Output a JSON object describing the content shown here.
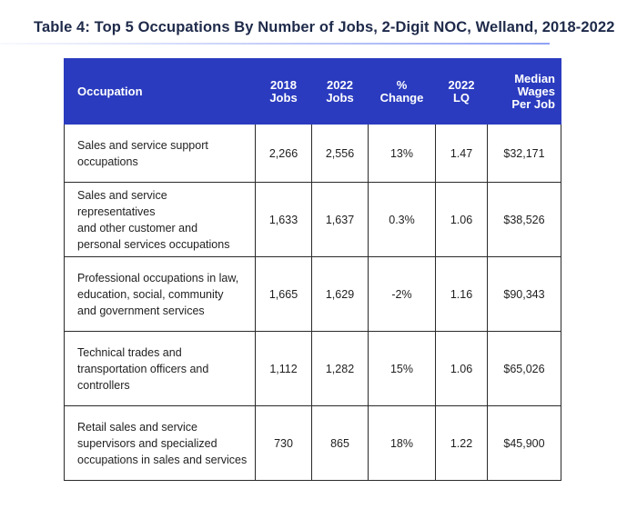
{
  "title": "Table 4: Top 5 Occupations By Number of Jobs, 2-Digit NOC, Welland, 2018-2022",
  "header": {
    "occupation": "Occupation",
    "jobs2018": [
      "2018",
      "Jobs"
    ],
    "jobs2022": [
      "2022",
      "Jobs"
    ],
    "change": [
      "%",
      "Change"
    ],
    "lq": [
      "2022",
      "LQ"
    ],
    "wages": [
      "Median",
      "Wages",
      "Per Job"
    ]
  },
  "rows": [
    {
      "occupation": [
        "Sales and service support",
        "occupations"
      ],
      "jobs2018": "2,266",
      "jobs2022": "2,556",
      "change": "13%",
      "lq": "1.47",
      "wages": "$32,171"
    },
    {
      "occupation": [
        "Sales and service representatives",
        "and other customer and",
        "personal services occupations"
      ],
      "jobs2018": "1,633",
      "jobs2022": "1,637",
      "change": "0.3%",
      "lq": "1.06",
      "wages": "$38,526"
    },
    {
      "occupation": [
        "Professional occupations in law,",
        "education, social, community",
        "and government services"
      ],
      "jobs2018": "1,665",
      "jobs2022": "1,629",
      "change": "-2%",
      "lq": "1.16",
      "wages": "$90,343"
    },
    {
      "occupation": [
        "Technical trades and",
        "transportation officers and",
        "controllers"
      ],
      "jobs2018": "1,112",
      "jobs2022": "1,282",
      "change": "15%",
      "lq": "1.06",
      "wages": "$65,026"
    },
    {
      "occupation": [
        "Retail sales and service",
        "supervisors and specialized",
        "occupations in sales and services"
      ],
      "jobs2018": "730",
      "jobs2022": "865",
      "change": "18%",
      "lq": "1.22",
      "wages": "$45,900"
    }
  ]
}
